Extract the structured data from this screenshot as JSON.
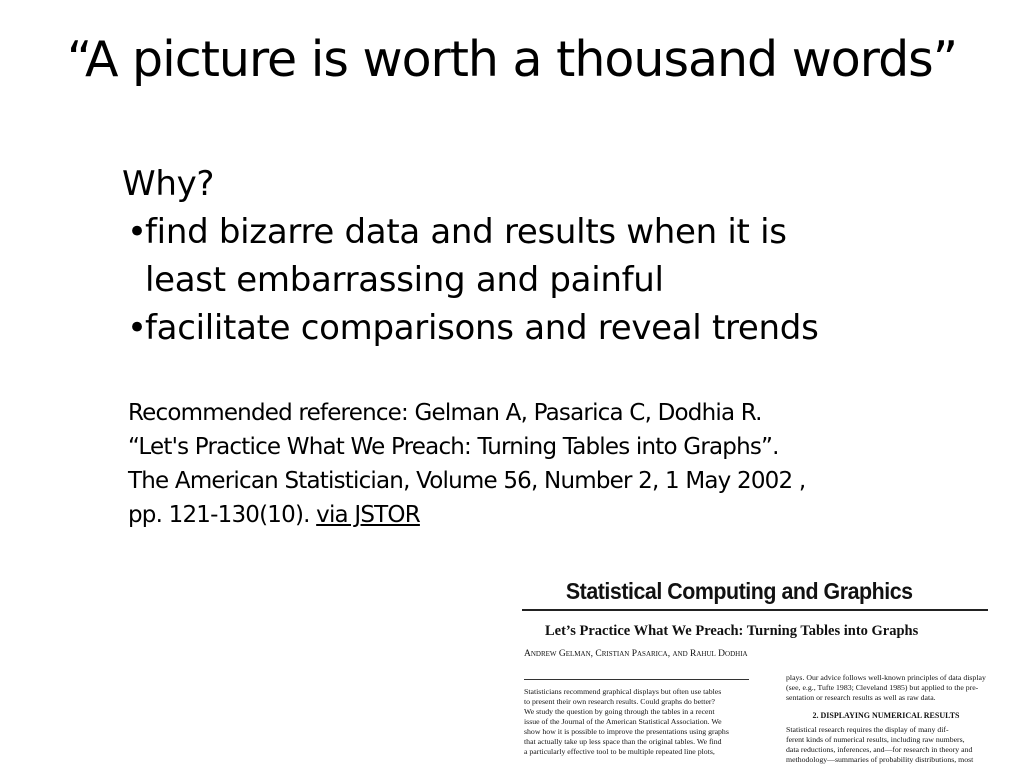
{
  "slide": {
    "title": "“A picture is worth a thousand words”",
    "why_label": "Why?",
    "bullets": [
      {
        "marker": "•",
        "text": "find bizarre data and results when it is least embarrassing and painful"
      },
      {
        "marker": "•",
        "text": "facilitate comparisons and reveal trends"
      }
    ],
    "reference": {
      "text": "Recommended reference: Gelman A, Pasarica C, Dodhia R. “Let's Practice What We Preach: Turning Tables into Graphs”. The American Statistician, Volume 56, Number 2, 1 May 2002 , pp. 121-130(10). ",
      "link_text": "via JSTOR"
    }
  },
  "paper_image": {
    "header": "Statistical Computing and Graphics",
    "title": "Let’s Practice What We Preach: Turning Tables into Graphs",
    "authors": "Andrew Gelman, Cristian Pasarica, and Rahul Dodhia",
    "left_column": [
      "Statisticians recommend graphical displays but often use tables",
      "to present their own research results. Could graphs do better?",
      "We study the question by going through the tables in a recent",
      "issue of the Journal of the American Statistical Association. We",
      "show how it is possible to improve the presentations using graphs",
      "that actually take up less space than the original tables. We find",
      "a particularly effective tool to be multiple repeated line plots,"
    ],
    "right_column_top": [
      "plays. Our advice follows well-known principles of data display",
      "(see, e.g., Tufte 1983; Cleveland 1985) but applied to the pre-",
      "sentation or research results as well as raw data."
    ],
    "section_heading": "2.  DISPLAYING NUMERICAL RESULTS",
    "right_column_bottom": [
      "Statistical research requires the display of many dif-",
      "ferent kinds of numerical results, including raw numbers,",
      "data reductions, inferences, and—for research in theory and",
      "methodology—summaries of probability distributions, most"
    ]
  }
}
